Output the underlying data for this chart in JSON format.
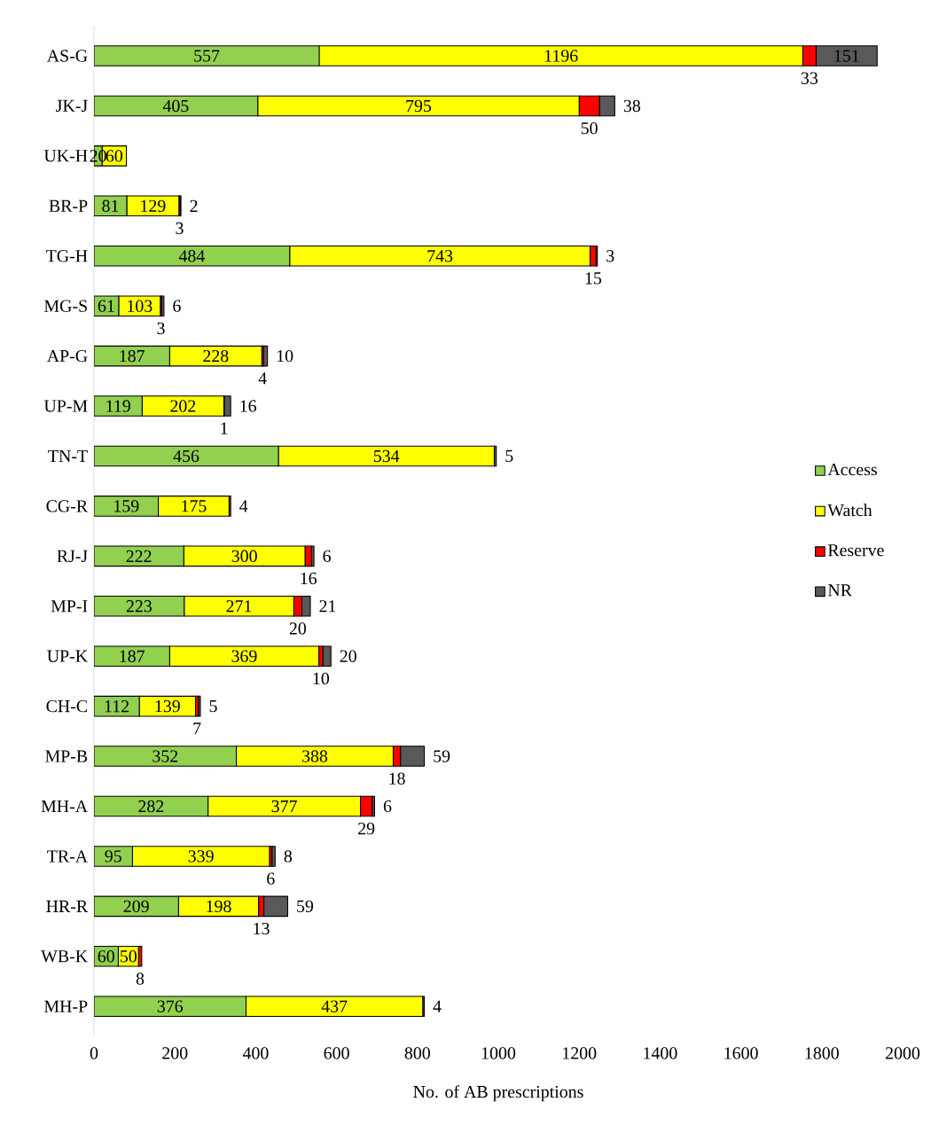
{
  "chart_data": {
    "type": "bar",
    "orientation": "horizontal",
    "stacked": true,
    "xlabel": "No. of AB prescriptions",
    "categories": [
      "AS-G",
      "JK-J",
      "UK-H",
      "BR-P",
      "TG-H",
      "MG-S",
      "AP-G",
      "UP-M",
      "TN-T",
      "CG-R",
      "RJ-J",
      "MP-I",
      "UP-K",
      "CH-C",
      "MP-B",
      "MH-A",
      "TR-A",
      "HR-R",
      "WB-K",
      "MH-P"
    ],
    "series": [
      {
        "name": "Access",
        "color": "#92d050",
        "values": [
          557,
          405,
          20,
          81,
          484,
          61,
          187,
          119,
          456,
          159,
          222,
          223,
          187,
          112,
          352,
          282,
          95,
          209,
          60,
          376
        ]
      },
      {
        "name": "Watch",
        "color": "#ffff00",
        "values": [
          1196,
          795,
          60,
          129,
          743,
          103,
          228,
          202,
          534,
          175,
          300,
          271,
          369,
          139,
          388,
          377,
          339,
          198,
          50,
          437
        ]
      },
      {
        "name": "Reserve",
        "color": "#ff0000",
        "values": [
          33,
          50,
          null,
          3,
          15,
          3,
          4,
          1,
          null,
          null,
          16,
          20,
          10,
          7,
          18,
          29,
          6,
          13,
          8,
          null
        ]
      },
      {
        "name": "NR",
        "color": "#595959",
        "values": [
          151,
          38,
          null,
          2,
          3,
          6,
          10,
          16,
          5,
          4,
          6,
          21,
          20,
          5,
          59,
          6,
          8,
          59,
          null,
          4
        ]
      }
    ],
    "xlim": [
      0,
      2000
    ],
    "xticks": [
      0,
      200,
      400,
      600,
      800,
      1000,
      1200,
      1400,
      1600,
      1800,
      2000
    ],
    "data_labels": true,
    "legend": "right",
    "grid": false
  }
}
